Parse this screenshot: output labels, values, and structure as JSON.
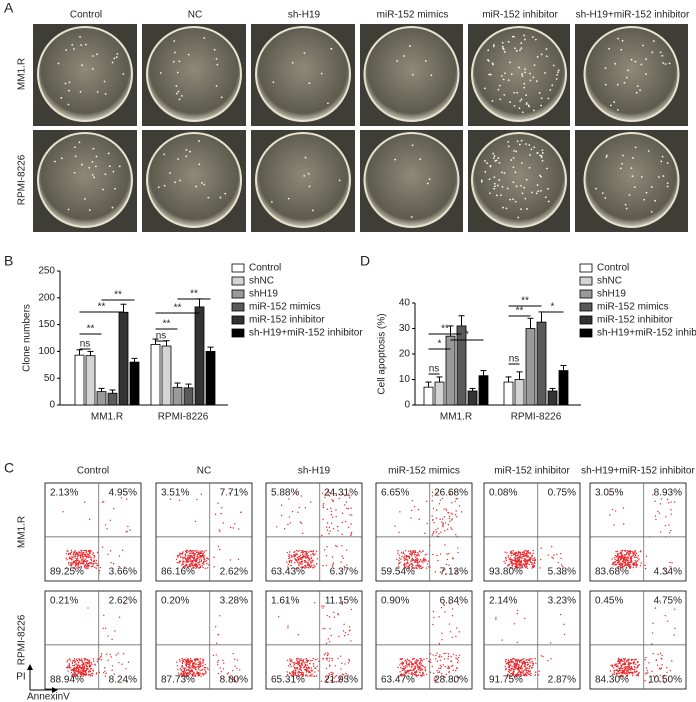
{
  "colony": {
    "panel": "A",
    "headers": [
      "Control",
      "NC",
      "sh-H19",
      "miR-152 mimics",
      "miR-152 inhibitor",
      "sh-H19+miR-152 inhibitor"
    ],
    "rows": [
      "MM1.R",
      "RPMI-8226"
    ]
  },
  "chart_data": [
    {
      "type": "bar",
      "panel": "B",
      "ylabel": "Clone numbers",
      "categories": [
        "MM1.R",
        "RPMI-8226"
      ],
      "ylim": [
        0,
        250
      ],
      "yticks": [
        0,
        50,
        100,
        150,
        200,
        250
      ],
      "legend": "right",
      "series": [
        {
          "name": "Control",
          "color": "#ffffff",
          "values": [
            93,
            113
          ],
          "errors": [
            10,
            10
          ]
        },
        {
          "name": "shNC",
          "color": "#d4d4d4",
          "values": [
            92,
            110
          ],
          "errors": [
            8,
            10
          ]
        },
        {
          "name": "shH19",
          "color": "#9a9a9a",
          "values": [
            25,
            33
          ],
          "errors": [
            6,
            8
          ]
        },
        {
          "name": "miR-152 mimics",
          "color": "#5a5a5a",
          "values": [
            22,
            32
          ],
          "errors": [
            6,
            7
          ]
        },
        {
          "name": "miR-152 inhibitor",
          "color": "#333333",
          "values": [
            173,
            183
          ],
          "errors": [
            15,
            15
          ]
        },
        {
          "name": "sh-H19+miR-152 inhibitor",
          "color": "#000000",
          "values": [
            80,
            100
          ],
          "errors": [
            7,
            8
          ]
        }
      ],
      "annotations": [
        "ns",
        "**",
        "**",
        "**",
        "ns",
        "**",
        "**",
        "**"
      ]
    },
    {
      "type": "bar",
      "panel": "D",
      "ylabel": "Cell apoptosis (%)",
      "categories": [
        "MM1.R",
        "RPMI-8226"
      ],
      "ylim": [
        0,
        40
      ],
      "yticks": [
        0,
        10,
        20,
        30,
        40
      ],
      "legend": "right",
      "series": [
        {
          "name": "Control",
          "color": "#ffffff",
          "values": [
            7,
            9
          ],
          "errors": [
            2,
            2
          ]
        },
        {
          "name": "shNC",
          "color": "#d4d4d4",
          "values": [
            9,
            10
          ],
          "errors": [
            2,
            3
          ]
        },
        {
          "name": "shH19",
          "color": "#9a9a9a",
          "values": [
            27,
            30
          ],
          "errors": [
            4,
            4
          ]
        },
        {
          "name": "miR-152 mimics",
          "color": "#5a5a5a",
          "values": [
            31,
            32.5
          ],
          "errors": [
            4,
            4
          ]
        },
        {
          "name": "miR-152 inhibitor",
          "color": "#333333",
          "values": [
            5.5,
            5.5
          ],
          "errors": [
            1,
            1
          ]
        },
        {
          "name": "sh-H19+miR-152 inhibitor",
          "color": "#000000",
          "values": [
            11.5,
            13.5
          ],
          "errors": [
            2,
            2
          ]
        }
      ],
      "annotations": [
        "ns",
        "*",
        "**",
        "*",
        "ns",
        "**",
        "**",
        "*"
      ]
    }
  ],
  "flow": {
    "panel": "C",
    "headers": [
      "Control",
      "NC",
      "sh-H19",
      "miR-152 mimics",
      "miR-152 inhibitor",
      "sh-H19+miR-152 inhibitor"
    ],
    "y_label": "PI",
    "x_label": "AnnexinV",
    "rows": [
      {
        "label": "MM1.R",
        "quadrants": [
          [
            "2.13%",
            "4.95%",
            "89.25%",
            "3.66%"
          ],
          [
            "3.51%",
            "7.71%",
            "86.16%",
            "2.62%"
          ],
          [
            "5.88%",
            "24.31%",
            "63.43%",
            "6.37%"
          ],
          [
            "6.65%",
            "26.68%",
            "59.54%",
            "7.13%"
          ],
          [
            "0.08%",
            "0.75%",
            "93.80%",
            "5.38%"
          ],
          [
            "3.05%",
            "8.93%",
            "83.68%",
            "4.34%"
          ]
        ]
      },
      {
        "label": "RPMI-8226",
        "quadrants": [
          [
            "0.21%",
            "2.62%",
            "88.94%",
            "8.24%"
          ],
          [
            "0.20%",
            "3.28%",
            "87.73%",
            "8.80%"
          ],
          [
            "1.61%",
            "11.15%",
            "65.31%",
            "21.93%"
          ],
          [
            "0.90%",
            "6.84%",
            "63.47%",
            "28.80%"
          ],
          [
            "2.14%",
            "3.23%",
            "91.75%",
            "2.87%"
          ],
          [
            "0.45%",
            "4.75%",
            "84.30%",
            "10.50%"
          ]
        ]
      }
    ]
  }
}
